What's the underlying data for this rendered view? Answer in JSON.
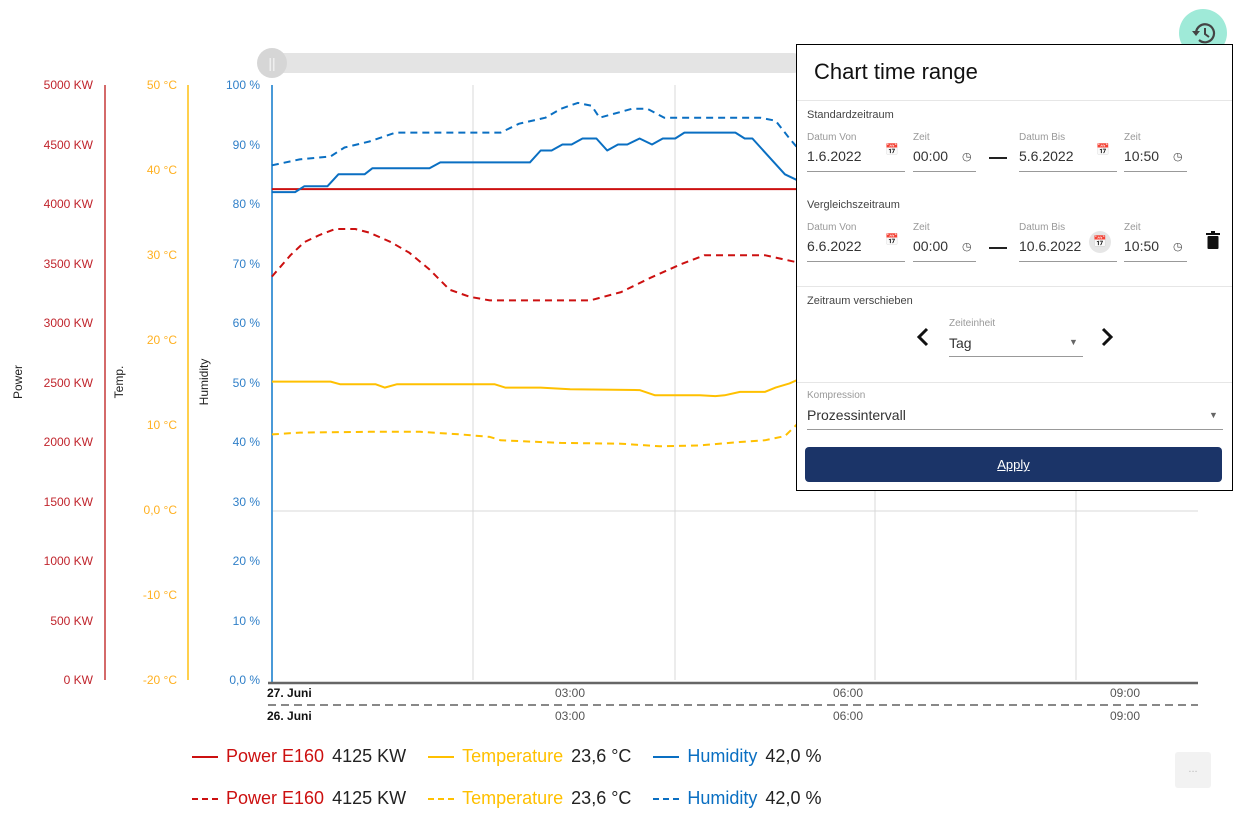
{
  "colors": {
    "power": "#cc1010",
    "temperature": "#ffc000",
    "humidity": "#0a6fc2",
    "apply_bg": "#1b3468",
    "history_button": "#9fead8"
  },
  "axes": {
    "power": {
      "title": "Power",
      "ticks": [
        "5000 KW",
        "4500 KW",
        "4000 KW",
        "3500 KW",
        "3000 KW",
        "2500 KW",
        "2000 KW",
        "1500 KW",
        "1000 KW",
        "500 KW",
        "0 KW"
      ],
      "range": [
        0,
        5000
      ]
    },
    "temperature": {
      "title": "Temp.",
      "ticks": [
        "50 °C",
        "40 °C",
        "30 °C",
        "20 °C",
        "10 °C",
        "0,0 °C",
        "-10 °C",
        "-20 °C"
      ],
      "range": [
        -20,
        50
      ]
    },
    "humidity": {
      "title": "Humidity",
      "ticks": [
        "100 %",
        "90 %",
        "80 %",
        "70 %",
        "60 %",
        "50 %",
        "40 %",
        "30 %",
        "20 %",
        "10 %",
        "0,0 %"
      ],
      "range": [
        0,
        100
      ]
    },
    "x_primary": {
      "day": "27. Juni",
      "ticks": [
        "03:00",
        "06:00",
        "09:00"
      ]
    },
    "x_compare": {
      "day": "26. Juni",
      "ticks": [
        "03:00",
        "06:00",
        "09:00"
      ]
    }
  },
  "chart_data": {
    "type": "line",
    "x_range": [
      "23:47",
      "09:46"
    ],
    "grid": true,
    "series": [
      {
        "name": "Power E160",
        "axis": "power",
        "style": "solid",
        "x": [
          "23:47",
          "05:27"
        ],
        "y": [
          4125,
          4125
        ]
      },
      {
        "name": "Power E160",
        "axis": "power",
        "style": "dashed",
        "x": [
          "23:47",
          "23:59",
          "00:08",
          "00:18",
          "00:28",
          "00:41",
          "00:50",
          "01:04",
          "01:16",
          "01:29",
          "01:42",
          "01:55",
          "02:08",
          "02:27",
          "03:13",
          "03:33",
          "03:52",
          "04:11",
          "04:27",
          "05:06",
          "05:27"
        ],
        "y": [
          3390,
          3570,
          3680,
          3740,
          3790,
          3790,
          3760,
          3680,
          3590,
          3450,
          3280,
          3220,
          3190,
          3190,
          3190,
          3260,
          3380,
          3490,
          3570,
          3570,
          3510
        ]
      },
      {
        "name": "Temperature",
        "axis": "temperature",
        "style": "solid",
        "x": [
          "23:47",
          "00:25",
          "00:31",
          "00:54",
          "01:00",
          "01:08",
          "02:11",
          "02:18",
          "02:41",
          "03:00",
          "03:45",
          "03:55",
          "04:24",
          "04:34",
          "04:40",
          "04:50",
          "05:06",
          "05:13",
          "05:22",
          "05:27"
        ],
        "y": [
          15.1,
          15.1,
          14.8,
          14.8,
          14.4,
          14.8,
          14.8,
          14.4,
          14.4,
          14.2,
          14.1,
          13.5,
          13.5,
          13.4,
          13.5,
          13.9,
          13.9,
          14.4,
          14.9,
          15.3
        ]
      },
      {
        "name": "Temperature",
        "axis": "temperature",
        "style": "dashed",
        "x": [
          "23:47",
          "00:05",
          "00:50",
          "01:23",
          "01:49",
          "02:08",
          "02:15",
          "02:54",
          "03:33",
          "03:58",
          "04:24",
          "04:50",
          "05:06",
          "05:19",
          "05:27"
        ],
        "y": [
          8.9,
          9.1,
          9.2,
          9.2,
          8.9,
          8.6,
          8.2,
          7.9,
          7.8,
          7.5,
          7.6,
          8.0,
          8.2,
          8.7,
          10.1
        ]
      },
      {
        "name": "Humidity",
        "axis": "humidity",
        "style": "solid",
        "x": [
          "23:47",
          "00:02",
          "00:08",
          "00:23",
          "00:30",
          "00:47",
          "00:52",
          "01:29",
          "01:36",
          "02:34",
          "02:41",
          "02:48",
          "02:55",
          "03:01",
          "03:08",
          "03:17",
          "03:24",
          "03:31",
          "03:37",
          "03:45",
          "03:53",
          "04:00",
          "04:08",
          "04:14",
          "04:47",
          "04:53",
          "04:58",
          "05:19",
          "05:27"
        ],
        "y": [
          82,
          82,
          83,
          83,
          85,
          85,
          86,
          86,
          87,
          87,
          89,
          89,
          90,
          90,
          91,
          91,
          89,
          90,
          90,
          91,
          90,
          91,
          91,
          92,
          92,
          91,
          91,
          85,
          84
        ]
      },
      {
        "name": "Humidity",
        "axis": "humidity",
        "style": "dashed",
        "x": [
          "23:47",
          "00:05",
          "00:25",
          "00:34",
          "00:50",
          "01:07",
          "01:55",
          "02:15",
          "02:27",
          "02:44",
          "02:54",
          "03:05",
          "03:14",
          "03:19",
          "03:33",
          "03:40",
          "03:50",
          "04:01",
          "05:03",
          "05:13",
          "05:22",
          "05:27"
        ],
        "y": [
          86.5,
          87.5,
          88,
          89.5,
          90.5,
          92,
          92,
          92,
          93.5,
          94.5,
          96,
          97,
          96.5,
          94.5,
          95.5,
          96,
          96,
          94.5,
          94.5,
          94,
          91,
          89.5
        ]
      }
    ]
  },
  "legend": {
    "primary": [
      {
        "name": "Power E160",
        "value": "4125 KW"
      },
      {
        "name": "Temperature",
        "value": "23,6 °C"
      },
      {
        "name": "Humidity",
        "value": "42,0 %"
      }
    ],
    "compare": [
      {
        "name": "Power E160",
        "value": "4125 KW"
      },
      {
        "name": "Temperature",
        "value": "23,6 °C"
      },
      {
        "name": "Humidity",
        "value": "42,0 %"
      }
    ]
  },
  "more_button": "...",
  "history_icon": "history-icon",
  "popup": {
    "title": "Chart time range",
    "standard": {
      "label": "Standardzeitraum",
      "from_label": "Datum Von",
      "from": "1.6.2022",
      "from_time_label": "Zeit",
      "from_time": "00:00",
      "to_label": "Datum Bis",
      "to": "5.6.2022",
      "to_time_label": "Zeit",
      "to_time": "10:50"
    },
    "compare": {
      "label": "Vergleichszeitraum",
      "from_label": "Datum Von",
      "from": "6.6.2022",
      "from_time_label": "Zeit",
      "from_time": "00:00",
      "to_label": "Datum Bis",
      "to": "10.6.2022",
      "to_time_label": "Zeit",
      "to_time": "10:50"
    },
    "shift": {
      "label": "Zeitraum verschieben",
      "unit_label": "Zeiteinheit",
      "unit": "Tag"
    },
    "compression": {
      "label": "Kompression",
      "value": "Prozessintervall"
    },
    "apply": "Apply"
  }
}
